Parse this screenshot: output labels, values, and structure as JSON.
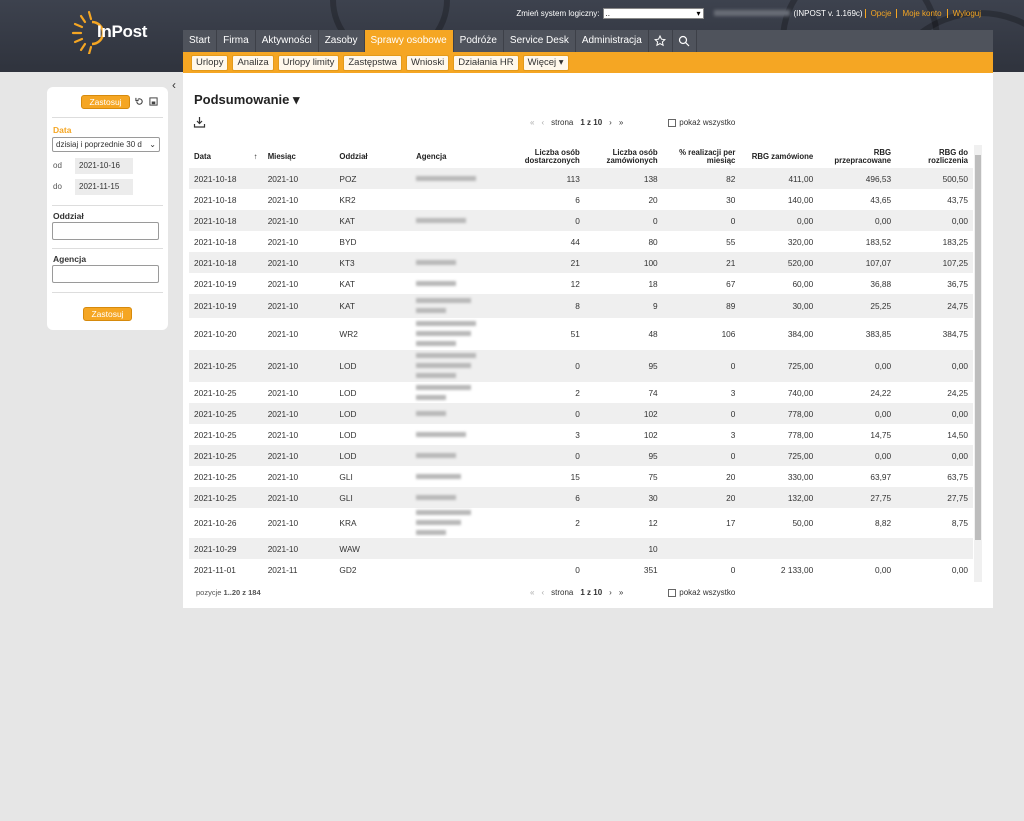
{
  "header": {
    "brand": "InPost",
    "system_label": "Zmień system logiczny:",
    "system_value": "..",
    "version": "(INPOST v. 1.169c)",
    "links": [
      "Opcje",
      "Moje konto",
      "Wyloguj"
    ]
  },
  "nav": {
    "items": [
      "Start",
      "Firma",
      "Aktywności",
      "Zasoby",
      "Sprawy osobowe",
      "Podróże",
      "Service Desk",
      "Administracja"
    ],
    "active": "Sprawy osobowe",
    "icons": [
      "star-icon",
      "search-icon"
    ]
  },
  "subnav": {
    "items": [
      "Urlopy",
      "Analiza",
      "Urlopy limity",
      "Zastępstwa",
      "Wnioski",
      "Działania HR",
      "Więcej ▾"
    ]
  },
  "sidebar": {
    "apply": "Zastosuj",
    "date_label": "Data",
    "date_select": "dzisiaj i poprzednie 30 d",
    "from_label": "od",
    "from": "2021-10-16",
    "to_label": "do",
    "to": "2021-11-15",
    "branch_label": "Oddział",
    "agency_label": "Agencja",
    "apply2": "Zastosuj"
  },
  "page": {
    "title": "Podsumowanie ▾",
    "pager_prefix": "strona",
    "pager_current": "1 z 10",
    "show_all": "pokaż wszystko",
    "footer_prefix": "pozycje",
    "footer_range": "1..20 z 184"
  },
  "table": {
    "columns": [
      "Data",
      "Miesiąc",
      "Oddział",
      "Agencja",
      "Liczba osób dostarczonych",
      "Liczba osób zamówionych",
      "% realizacji per miesiąc",
      "RBG zamówione",
      "RBG przepracowane",
      "RBG do rozliczenia"
    ],
    "rows": [
      [
        "2021-10-18",
        "2021-10",
        "POZ",
        "",
        "113",
        "138",
        "82",
        "411,00",
        "496,53",
        "500,50"
      ],
      [
        "2021-10-18",
        "2021-10",
        "KR2",
        "",
        "6",
        "20",
        "30",
        "140,00",
        "43,65",
        "43,75"
      ],
      [
        "2021-10-18",
        "2021-10",
        "KAT",
        "",
        "0",
        "0",
        "0",
        "0,00",
        "0,00",
        "0,00"
      ],
      [
        "2021-10-18",
        "2021-10",
        "BYD",
        "",
        "44",
        "80",
        "55",
        "320,00",
        "183,52",
        "183,25"
      ],
      [
        "2021-10-18",
        "2021-10",
        "KT3",
        "",
        "21",
        "100",
        "21",
        "520,00",
        "107,07",
        "107,25"
      ],
      [
        "2021-10-19",
        "2021-10",
        "KAT",
        "",
        "12",
        "18",
        "67",
        "60,00",
        "36,88",
        "36,75"
      ],
      [
        "2021-10-19",
        "2021-10",
        "KAT",
        "",
        "8",
        "9",
        "89",
        "30,00",
        "25,25",
        "24,75"
      ],
      [
        "2021-10-20",
        "2021-10",
        "WR2",
        "",
        "51",
        "48",
        "106",
        "384,00",
        "383,85",
        "384,75"
      ],
      [
        "2021-10-25",
        "2021-10",
        "LOD",
        "",
        "0",
        "95",
        "0",
        "725,00",
        "0,00",
        "0,00"
      ],
      [
        "2021-10-25",
        "2021-10",
        "LOD",
        "",
        "2",
        "74",
        "3",
        "740,00",
        "24,22",
        "24,25"
      ],
      [
        "2021-10-25",
        "2021-10",
        "LOD",
        "",
        "0",
        "102",
        "0",
        "778,00",
        "0,00",
        "0,00"
      ],
      [
        "2021-10-25",
        "2021-10",
        "LOD",
        "",
        "3",
        "102",
        "3",
        "778,00",
        "14,75",
        "14,50"
      ],
      [
        "2021-10-25",
        "2021-10",
        "LOD",
        "",
        "0",
        "95",
        "0",
        "725,00",
        "0,00",
        "0,00"
      ],
      [
        "2021-10-25",
        "2021-10",
        "GLI",
        "",
        "15",
        "75",
        "20",
        "330,00",
        "63,97",
        "63,75"
      ],
      [
        "2021-10-25",
        "2021-10",
        "GLI",
        "",
        "6",
        "30",
        "20",
        "132,00",
        "27,75",
        "27,75"
      ],
      [
        "2021-10-26",
        "2021-10",
        "KRA",
        "",
        "2",
        "12",
        "17",
        "50,00",
        "8,82",
        "8,75"
      ],
      [
        "2021-10-29",
        "2021-10",
        "WAW",
        "",
        "",
        "10",
        "",
        "",
        "",
        ""
      ],
      [
        "2021-11-01",
        "2021-11",
        "GD2",
        "",
        "0",
        "351",
        "0",
        "2 133,00",
        "0,00",
        "0,00"
      ]
    ]
  },
  "colors": {
    "accent": "#f5a623",
    "header": "#353944",
    "nav": "#4f535c"
  }
}
